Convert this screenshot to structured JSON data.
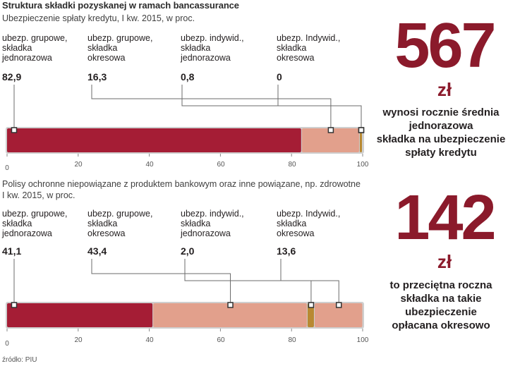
{
  "title": "Struktura składki pozyskanej w ramach bancassurance",
  "source": "źródło: PIU",
  "colors": {
    "grupowe_jednorazowa": "#a51d35",
    "grupowe_okresowa": "#e2a08c",
    "indywid_jednorazowa": "#b88932",
    "indywid_okresowa": "#e2a08c",
    "accent": "#8b1a2b"
  },
  "chart_data": [
    {
      "type": "bar",
      "title": "Ubezpieczenie spłaty kredytu, I kw. 2015, w proc.",
      "xlim": [
        0,
        100
      ],
      "ticks": [
        "0",
        "20",
        "40",
        "60",
        "80",
        "100"
      ],
      "series": [
        {
          "name": "ubezp. grupowe, składka jednorazowa",
          "label": [
            "ubezp. grupowe,",
            "składka",
            "jednorazowa"
          ],
          "value": 82.9,
          "value_text": "82,9"
        },
        {
          "name": "ubezp. grupowe, składka okresowa",
          "label": [
            "ubezp. grupowe,",
            "składka",
            "okresowa"
          ],
          "value": 16.3,
          "value_text": "16,3"
        },
        {
          "name": "ubezp. indywid., składka jednorazowa",
          "label": [
            "ubezp. indywid.,",
            "składka",
            "jednorazowa"
          ],
          "value": 0.8,
          "value_text": "0,8"
        },
        {
          "name": "ubezp. Indywid., składka okresowa",
          "label": [
            "ubezp. Indywid.,",
            "składka",
            "okresowa"
          ],
          "value": 0,
          "value_text": "0"
        }
      ],
      "headline": {
        "number": "567",
        "unit": "zł",
        "desc": [
          "wynosi rocznie średnia",
          "jednorazowa",
          "składka na ubezpieczenie",
          "spłaty kredytu"
        ]
      }
    },
    {
      "type": "bar",
      "title": "Polisy ochronne niepowiązane z produktem bankowym oraz inne powiązane, np. zdrowotne",
      "title_line2": "I kw. 2015, w proc.",
      "xlim": [
        0,
        100
      ],
      "ticks": [
        "0",
        "20",
        "40",
        "60",
        "80",
        "100"
      ],
      "series": [
        {
          "name": "ubezp. grupowe, składka jednorazowa",
          "label": [
            "ubezp. grupowe,",
            "składka",
            "jednorazowa"
          ],
          "value": 41.1,
          "value_text": "41,1"
        },
        {
          "name": "ubezp. grupowe, składka okresowa",
          "label": [
            "ubezp. grupowe,",
            "składka",
            "okresowa"
          ],
          "value": 43.4,
          "value_text": "43,4"
        },
        {
          "name": "ubezp. indywid., składka jednorazowa",
          "label": [
            "ubezp. indywid.,",
            "składka",
            "jednorazowa"
          ],
          "value": 2.0,
          "value_text": "2,0"
        },
        {
          "name": "ubezp. Indywid., składka okresowa",
          "label": [
            "ubezp. Indywid.,",
            "składka",
            "okresowa"
          ],
          "value": 13.6,
          "value_text": "13,6"
        }
      ],
      "headline": {
        "number": "142",
        "unit": "zł",
        "desc": [
          "to przeciętna roczna",
          "składka na takie",
          "ubezpieczenie",
          "opłacana okresowo"
        ]
      }
    }
  ]
}
